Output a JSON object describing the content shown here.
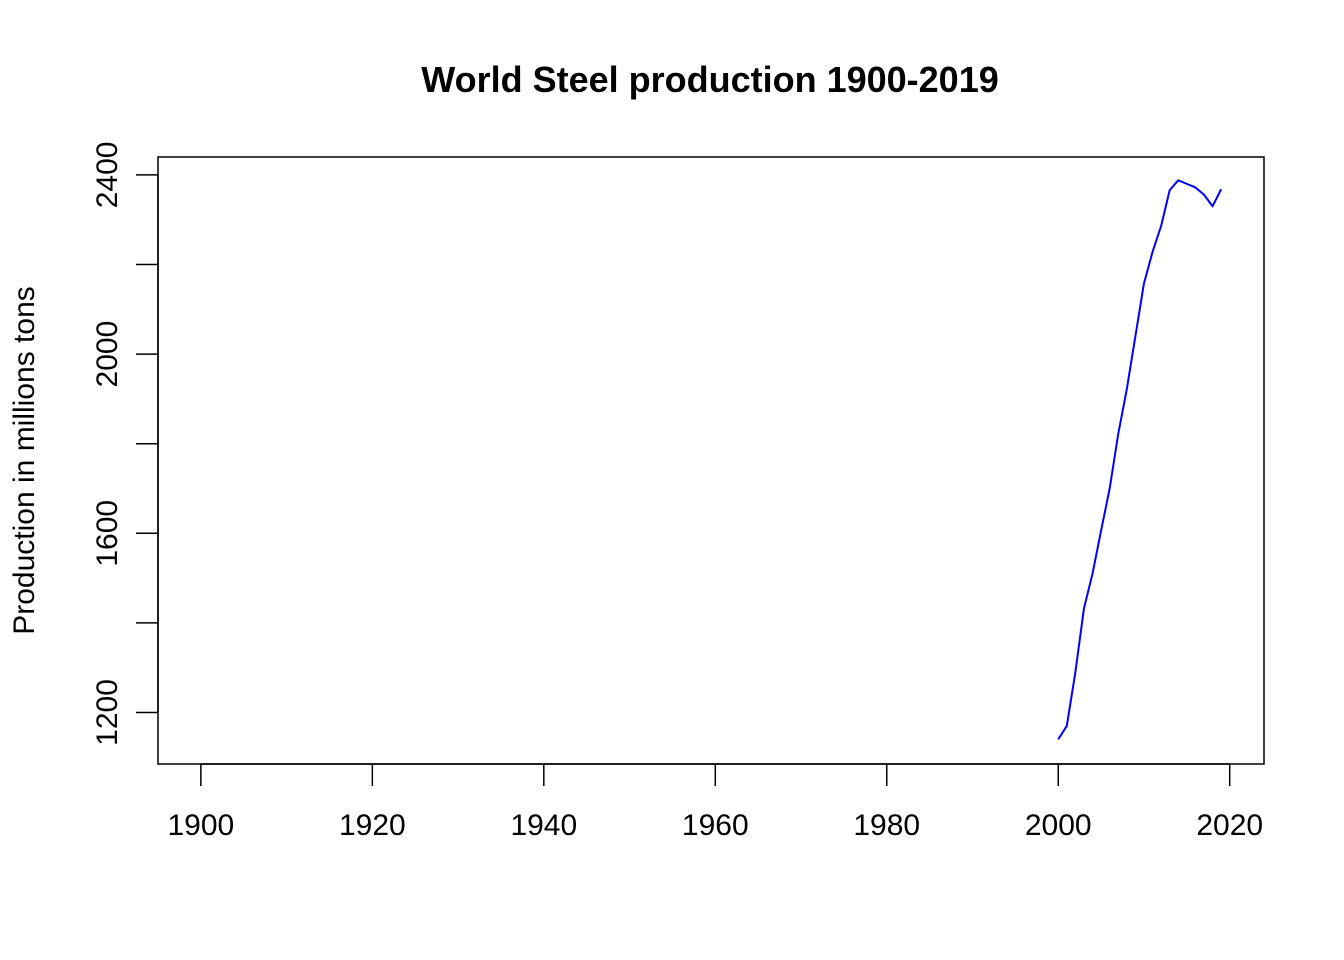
{
  "chart_data": {
    "type": "line",
    "title": "World Steel production 1900-2019",
    "xlabel": "",
    "ylabel": "Production in millions tons",
    "xlim": [
      1895,
      2024
    ],
    "ylim": [
      1085,
      2440
    ],
    "xticks": [
      1900,
      1920,
      1940,
      1960,
      1980,
      2000,
      2020
    ],
    "yticks": [
      1200,
      1400,
      1600,
      1800,
      2000,
      2200,
      2400
    ],
    "ytick_labels": [
      "1200",
      "",
      "1600",
      "",
      "2000",
      "",
      "2400"
    ],
    "grid": false,
    "series": [
      {
        "color": "#0000ff",
        "x": [
          2000,
          2001,
          2002,
          2003,
          2004,
          2005,
          2006,
          2007,
          2008,
          2009,
          2010,
          2011,
          2012,
          2013,
          2014,
          2015,
          2016,
          2017,
          2018,
          2019
        ],
        "y": [
          1140,
          1170,
          1290,
          1432,
          1510,
          1606,
          1700,
          1822,
          1922,
          2040,
          2158,
          2228,
          2286,
          2366,
          2388,
          2380,
          2372,
          2356,
          2330,
          2368
        ]
      }
    ]
  }
}
